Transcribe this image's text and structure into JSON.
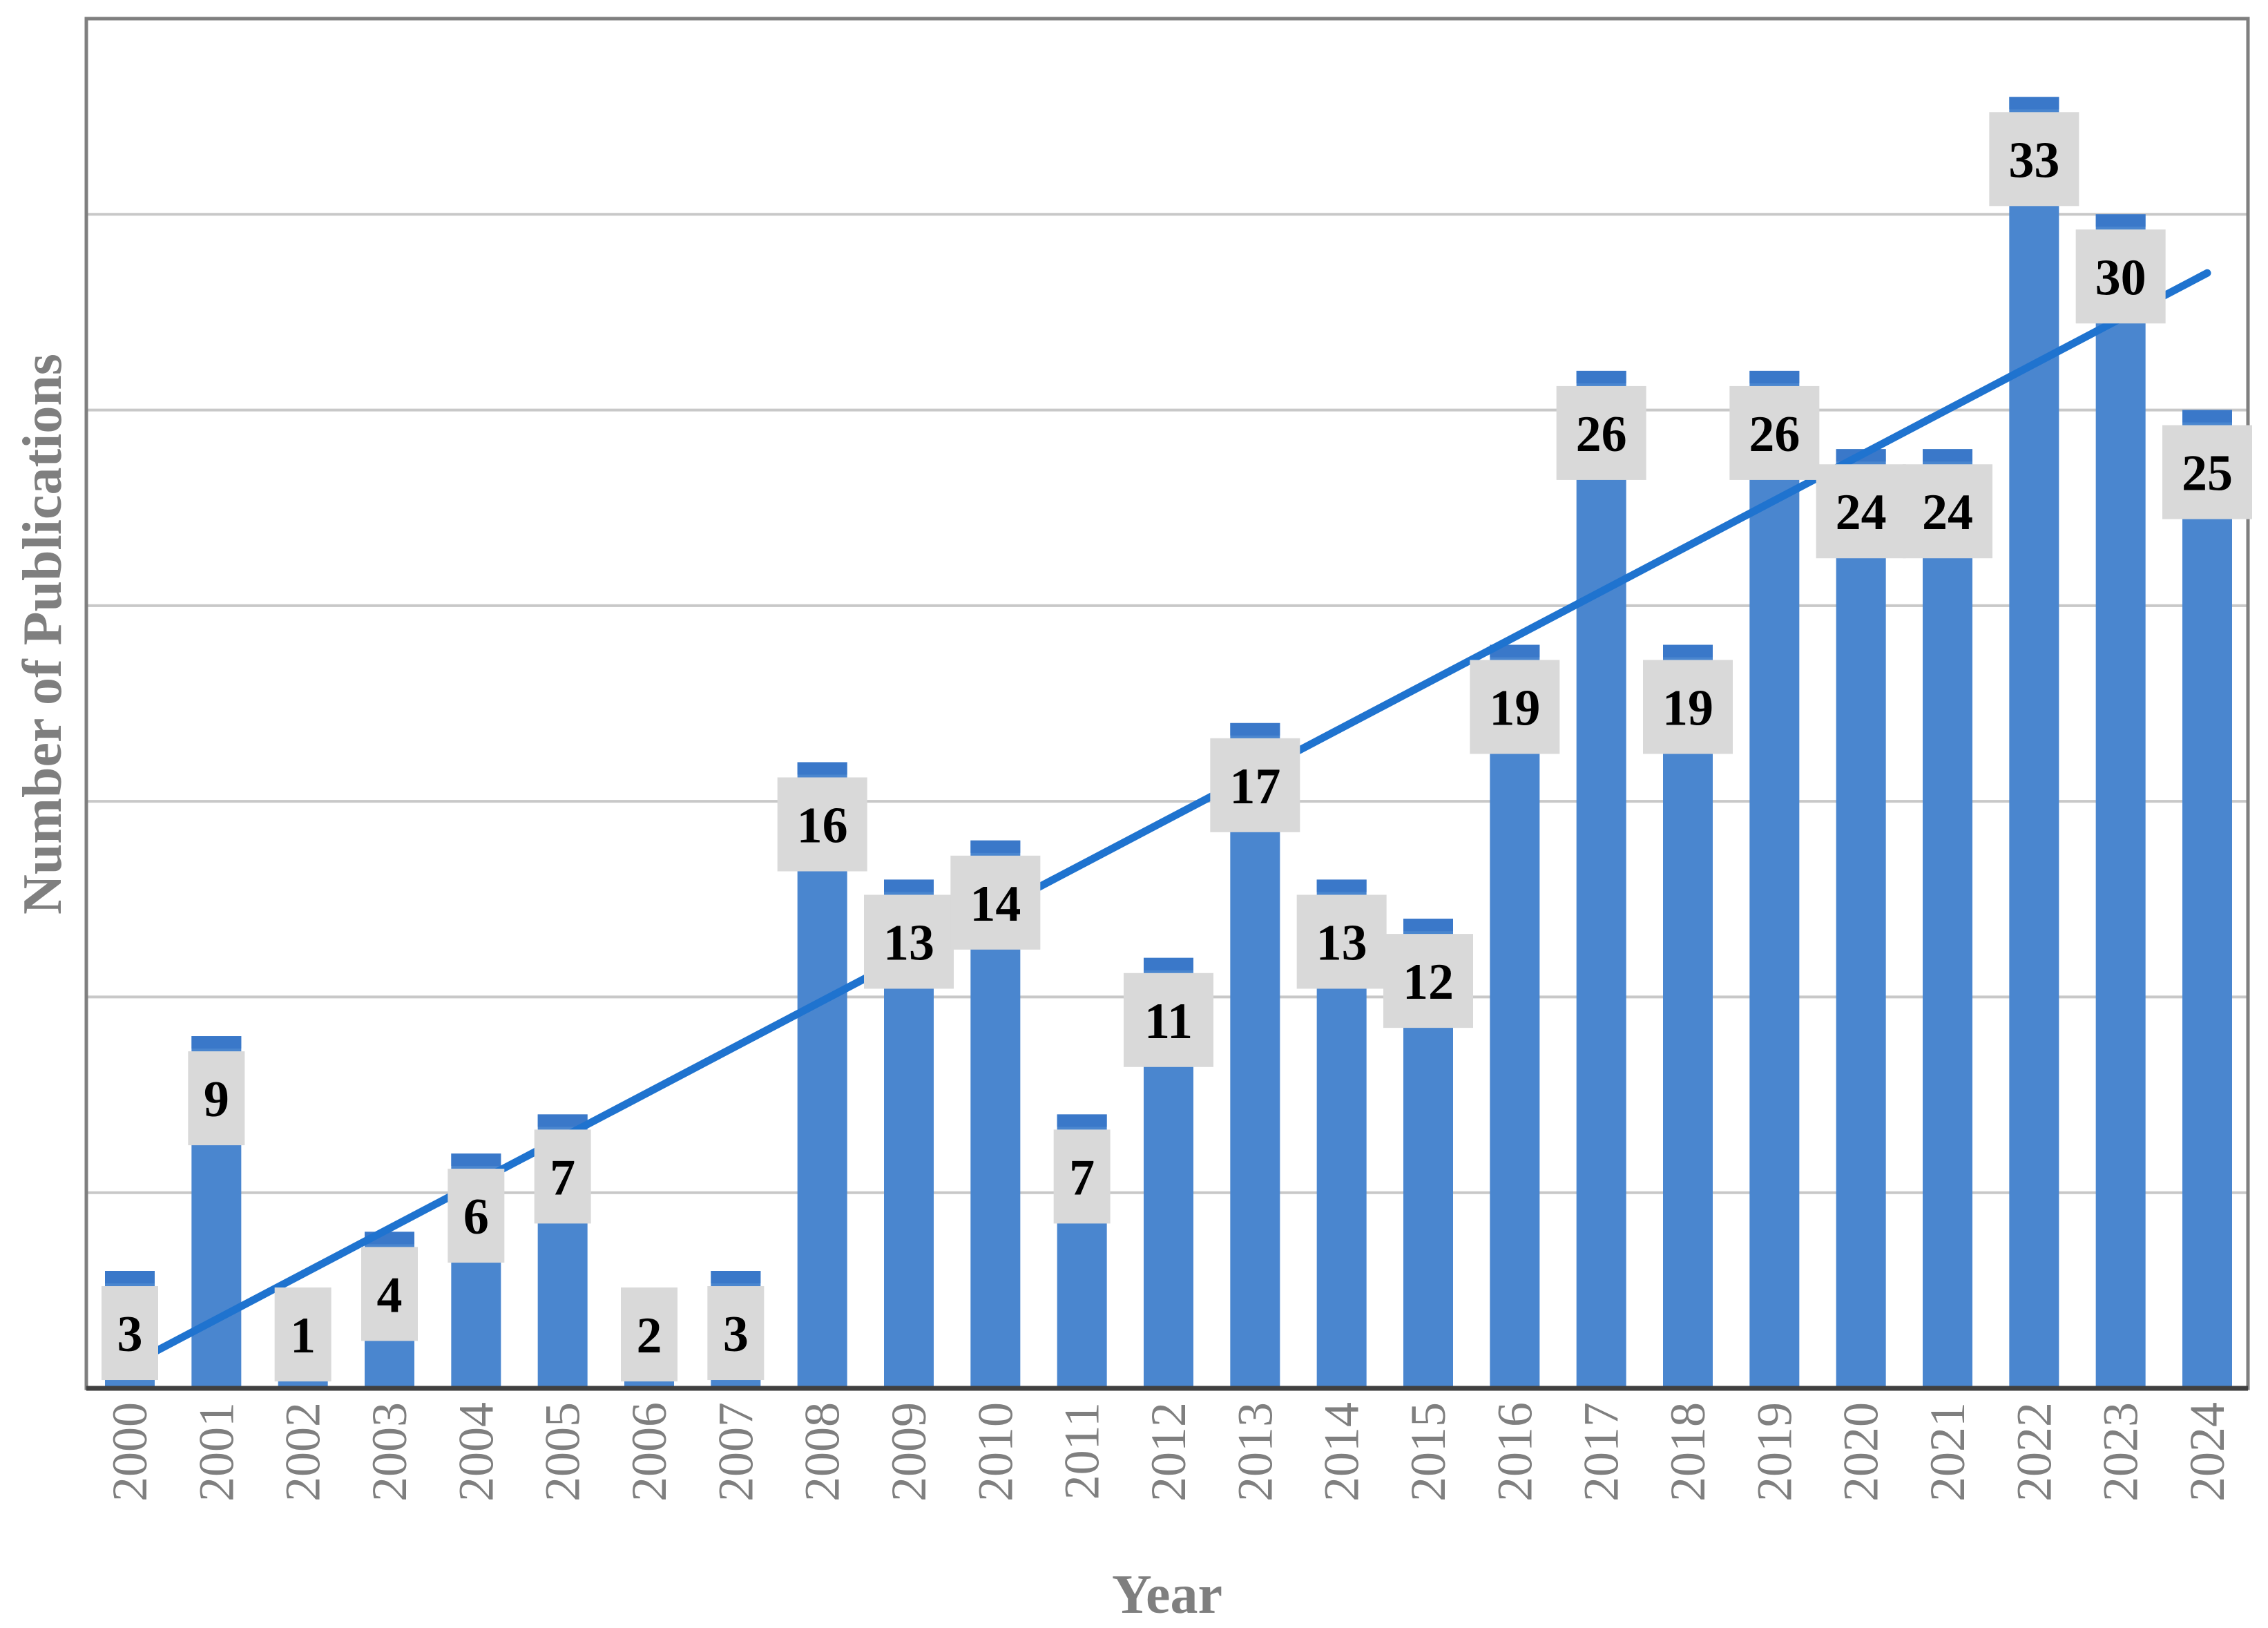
{
  "chart_data": {
    "type": "bar",
    "title": "",
    "xlabel": "Year",
    "ylabel": "Number of Publications",
    "categories": [
      "2000",
      "2001",
      "2002",
      "2003",
      "2004",
      "2005",
      "2006",
      "2007",
      "2008",
      "2009",
      "2010",
      "2011",
      "2012",
      "2013",
      "2014",
      "2015",
      "2016",
      "2017",
      "2018",
      "2019",
      "2020",
      "2021",
      "2022",
      "2023",
      "2024"
    ],
    "values": [
      3,
      9,
      1,
      4,
      6,
      7,
      2,
      3,
      16,
      13,
      14,
      7,
      11,
      17,
      13,
      12,
      19,
      26,
      19,
      26,
      24,
      24,
      33,
      30,
      25
    ],
    "ylim": [
      0,
      35
    ],
    "ytick_step": 5,
    "y_tick_labels_shown": false,
    "grid": true,
    "data_labels": true,
    "trendline": {
      "type": "linear",
      "start_value": 0.6,
      "end_value": 28.5
    },
    "colors": {
      "bar": "#4a86cf",
      "trendline": "#1f73cf",
      "label_bg": "#d9d9d9",
      "axis_text": "#7f7f7f"
    }
  }
}
